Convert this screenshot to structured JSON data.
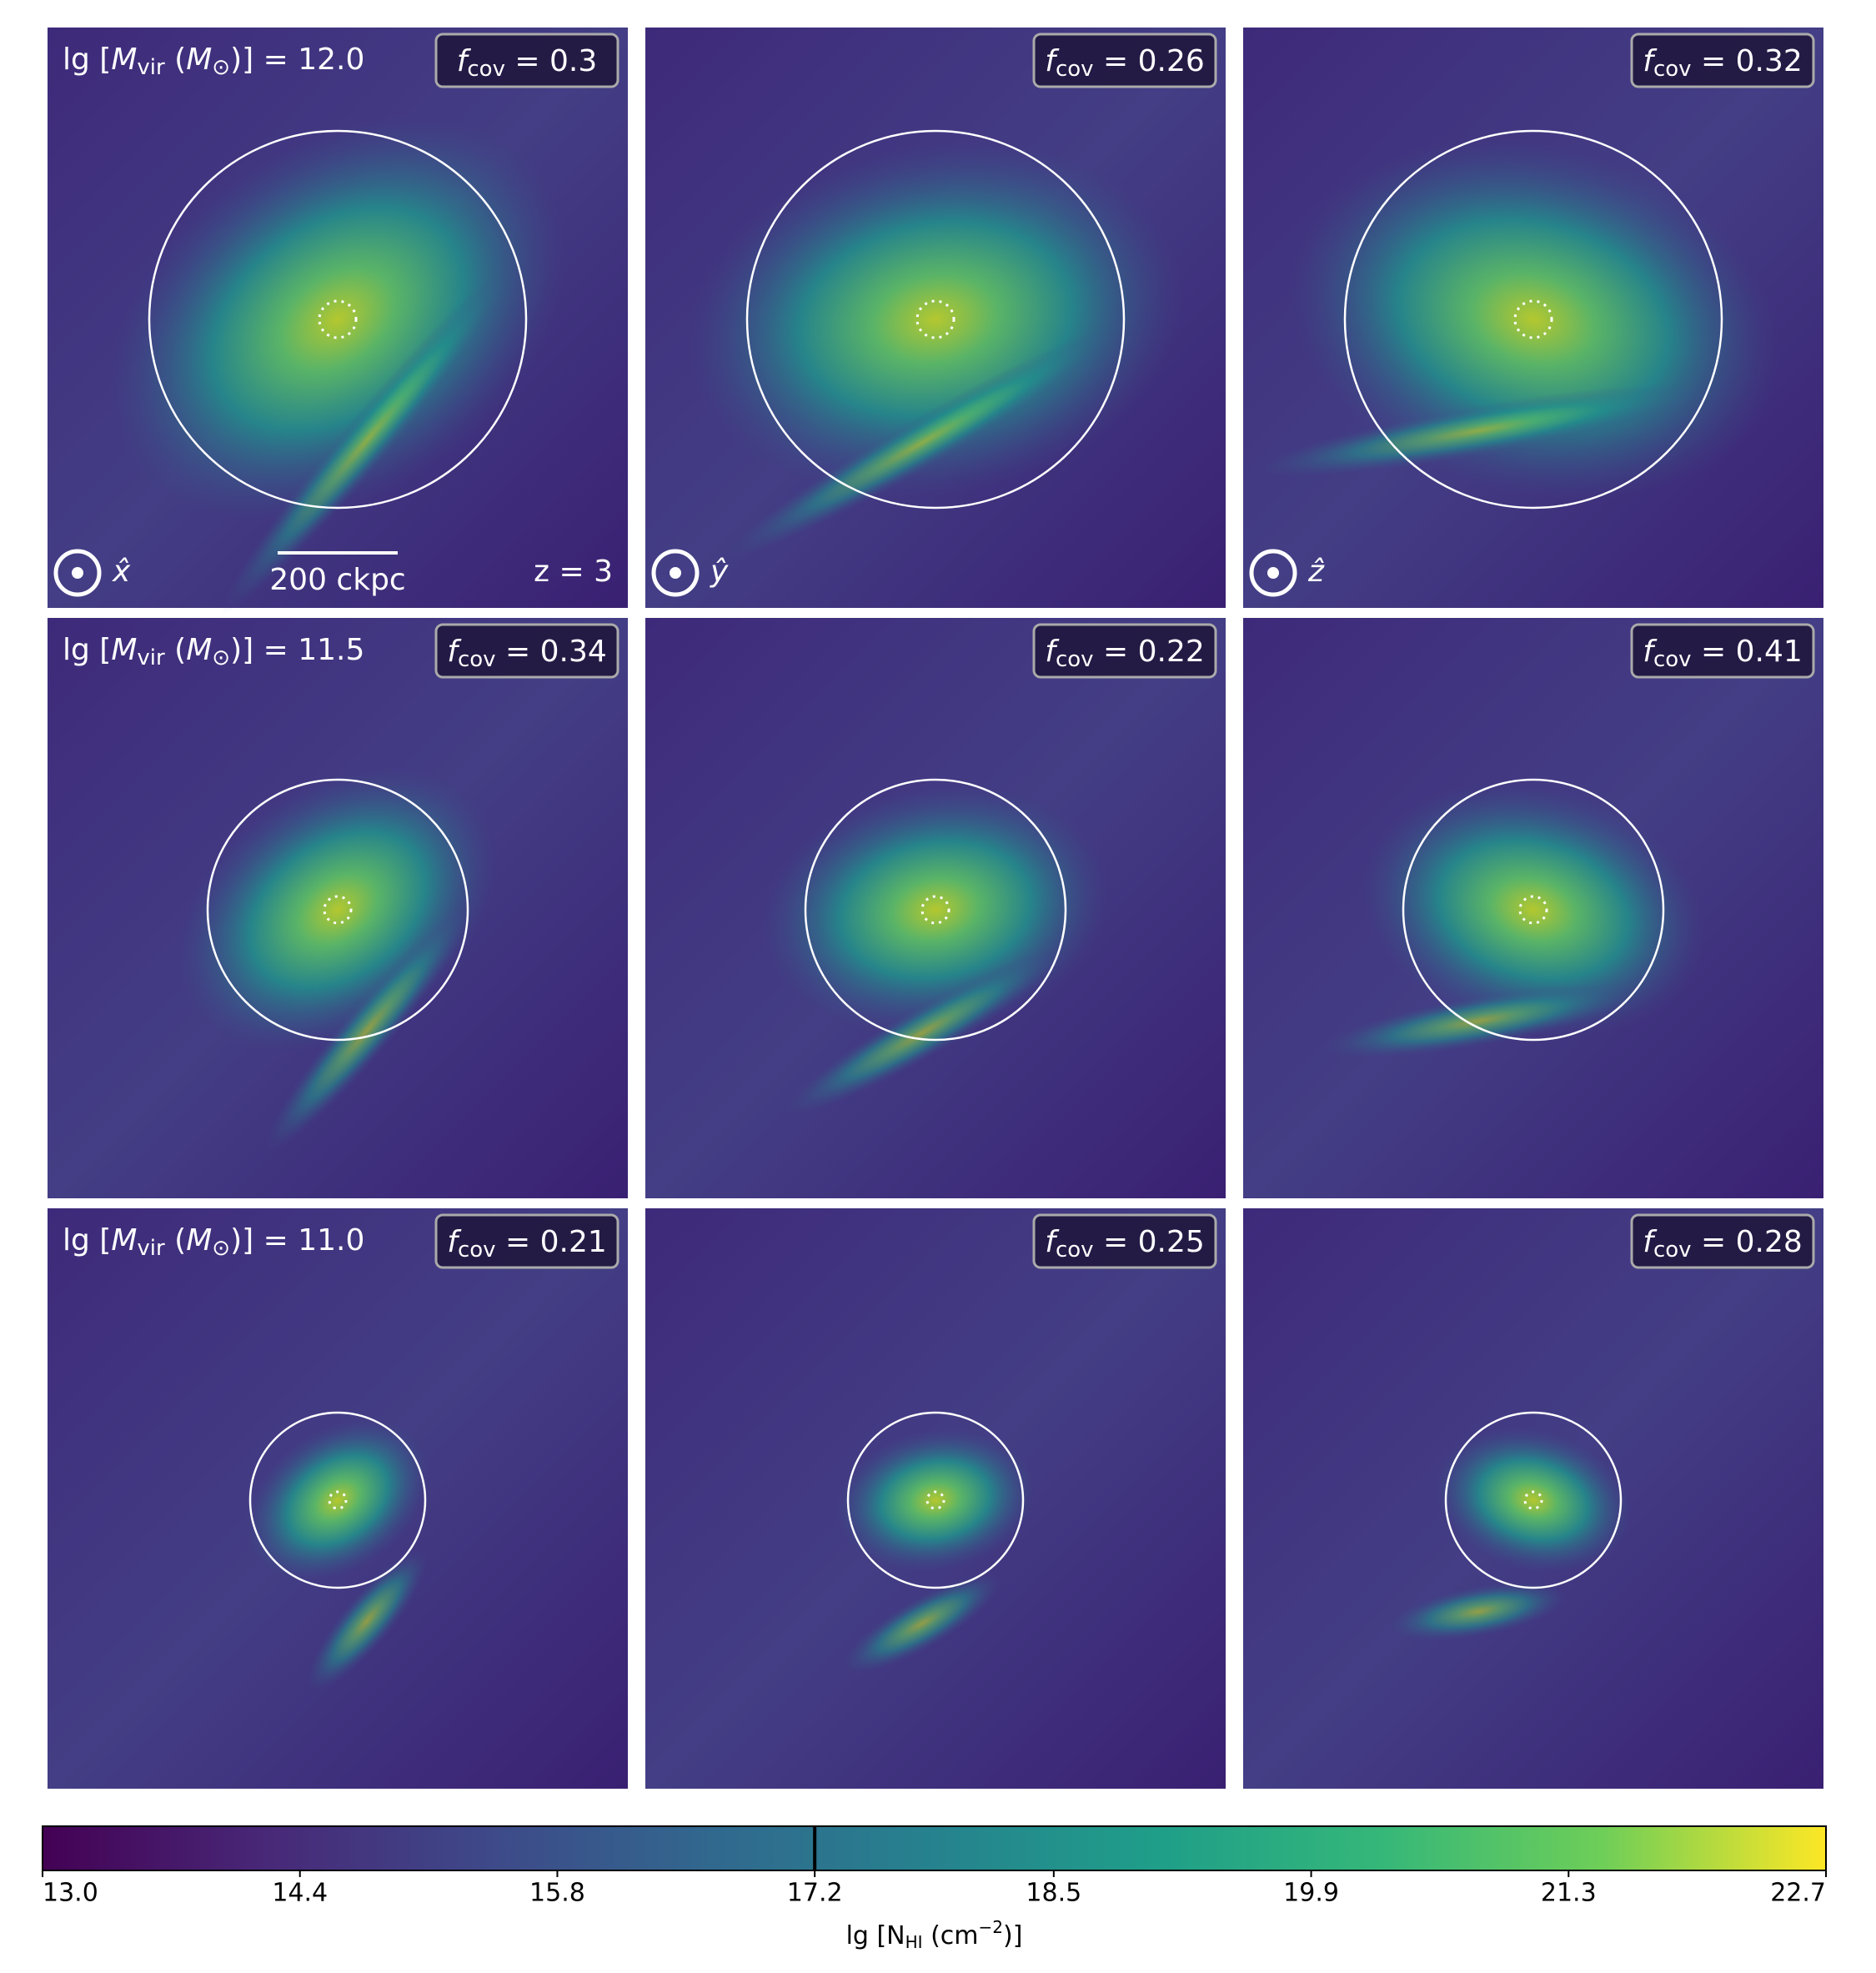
{
  "figure": {
    "mass_label_parts": [
      "lg [",
      "M",
      "vir",
      " (",
      "M",
      "⊙",
      ")] = "
    ],
    "fcov_parts": [
      "f",
      "cov",
      " = "
    ],
    "rows": [
      {
        "mass": "12.0",
        "fcov": [
          0.3,
          0.26,
          0.32
        ]
      },
      {
        "mass": "11.5",
        "fcov": [
          0.34,
          0.22,
          0.41
        ]
      },
      {
        "mass": "11.0",
        "fcov": [
          0.21,
          0.25,
          0.28
        ]
      }
    ],
    "projection_axes": [
      "x̂",
      "ŷ",
      "ẑ"
    ],
    "scale_bar": "200 ckpc",
    "redshift": "z = 3",
    "colorbar": {
      "type": "colorbar",
      "lim": [
        13,
        22.7
      ],
      "ticks": [
        {
          "value": 13,
          "label": "13.0"
        },
        14.4,
        15.8,
        17.2,
        18.5,
        19.9,
        21.3,
        22.7
      ],
      "contour_level": 17.2,
      "label_parts": [
        "lg [N",
        "HI",
        " (cm",
        "−2",
        ")]"
      ]
    }
  }
}
